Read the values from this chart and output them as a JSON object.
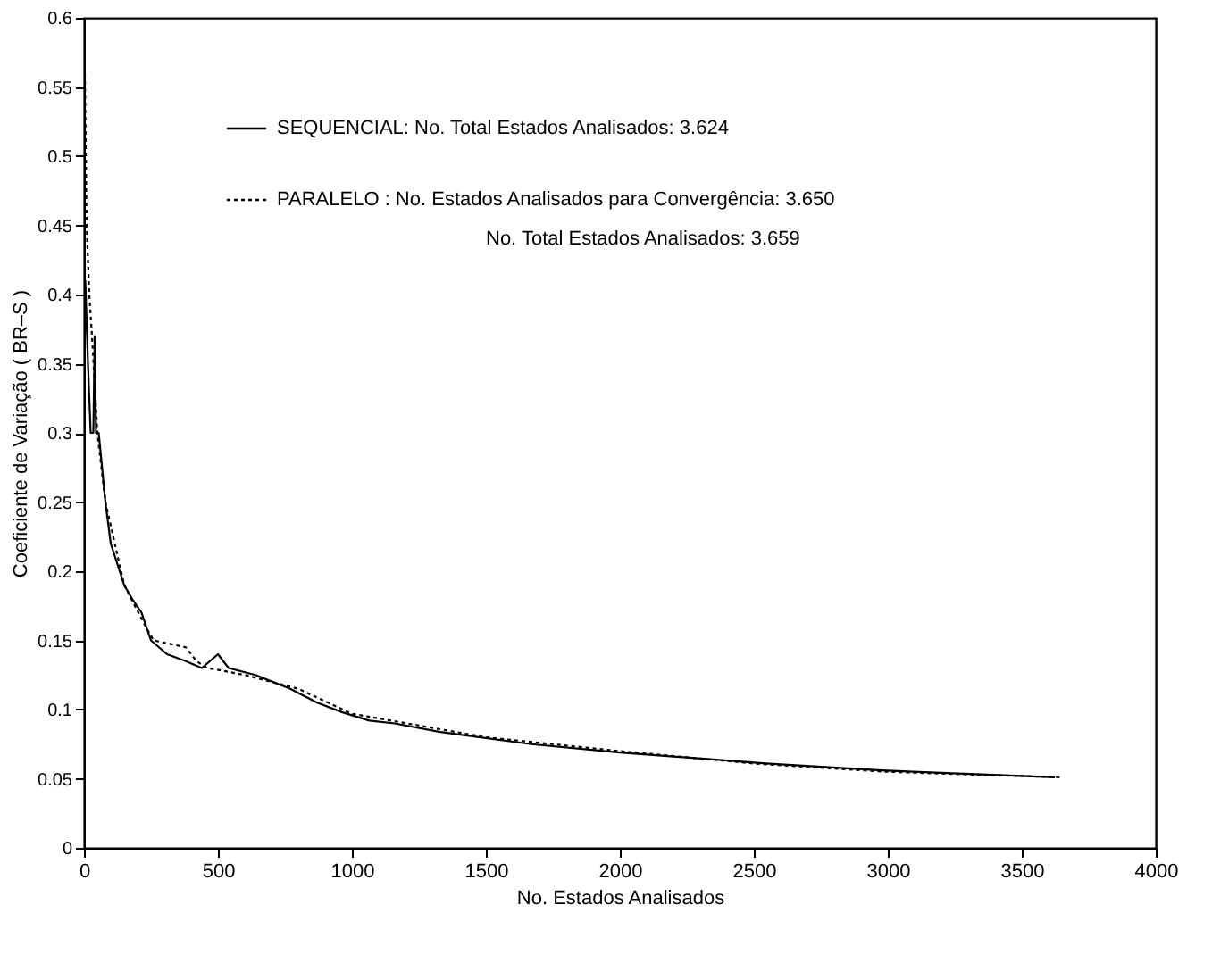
{
  "chart_data": {
    "type": "line",
    "xlabel": "No. Estados Analisados",
    "ylabel": "Coeficiente de Variação ( BR–S )",
    "xlim": [
      0,
      4000
    ],
    "xticks": [
      0,
      500,
      1000,
      1500,
      2000,
      2500,
      3000,
      3500,
      4000
    ],
    "ylim": [
      0,
      0.6
    ],
    "yticks": [
      0,
      0.05,
      0.1,
      0.15,
      0.2,
      0.25,
      0.3,
      0.35,
      0.4,
      0.45,
      0.5,
      0.55,
      0.6
    ],
    "grid": false,
    "legend": "top",
    "series": [
      {
        "name": "SEQUENCIAL: No. Total Estados Analisados: 3.624",
        "color": "#000000",
        "line_style": "solid",
        "x": [
          0,
          5,
          15,
          25,
          35,
          40,
          45,
          55,
          70,
          80,
          100,
          150,
          180,
          215,
          250,
          310,
          380,
          440,
          470,
          500,
          540,
          640,
          770,
          870,
          965,
          1065,
          1160,
          1325,
          1670,
          2000,
          2545,
          2976,
          3624
        ],
        "values": [
          0.3,
          0.41,
          0.35,
          0.3,
          0.3,
          0.37,
          0.3,
          0.3,
          0.27,
          0.25,
          0.22,
          0.19,
          0.18,
          0.17,
          0.15,
          0.14,
          0.135,
          0.13,
          0.135,
          0.14,
          0.13,
          0.125,
          0.115,
          0.105,
          0.098,
          0.092,
          0.09,
          0.084,
          0.075,
          0.069,
          0.061,
          0.056,
          0.051
        ]
      },
      {
        "name": "PARALELO  : No. Estados Analisados para Convergência: 3.650",
        "color": "#000000",
        "line_style": "dotted",
        "x": [
          2,
          10,
          20,
          30,
          50,
          80,
          150,
          230,
          260,
          380,
          420,
          460,
          520,
          600,
          800,
          1000,
          1500,
          2000,
          2500,
          3000,
          3650
        ],
        "values": [
          0.58,
          0.45,
          0.4,
          0.37,
          0.3,
          0.25,
          0.19,
          0.16,
          0.15,
          0.145,
          0.135,
          0.13,
          0.128,
          0.125,
          0.115,
          0.097,
          0.08,
          0.07,
          0.061,
          0.055,
          0.051
        ]
      }
    ],
    "annotations": [
      "No. Total Estados Analisados: 3.659"
    ]
  }
}
